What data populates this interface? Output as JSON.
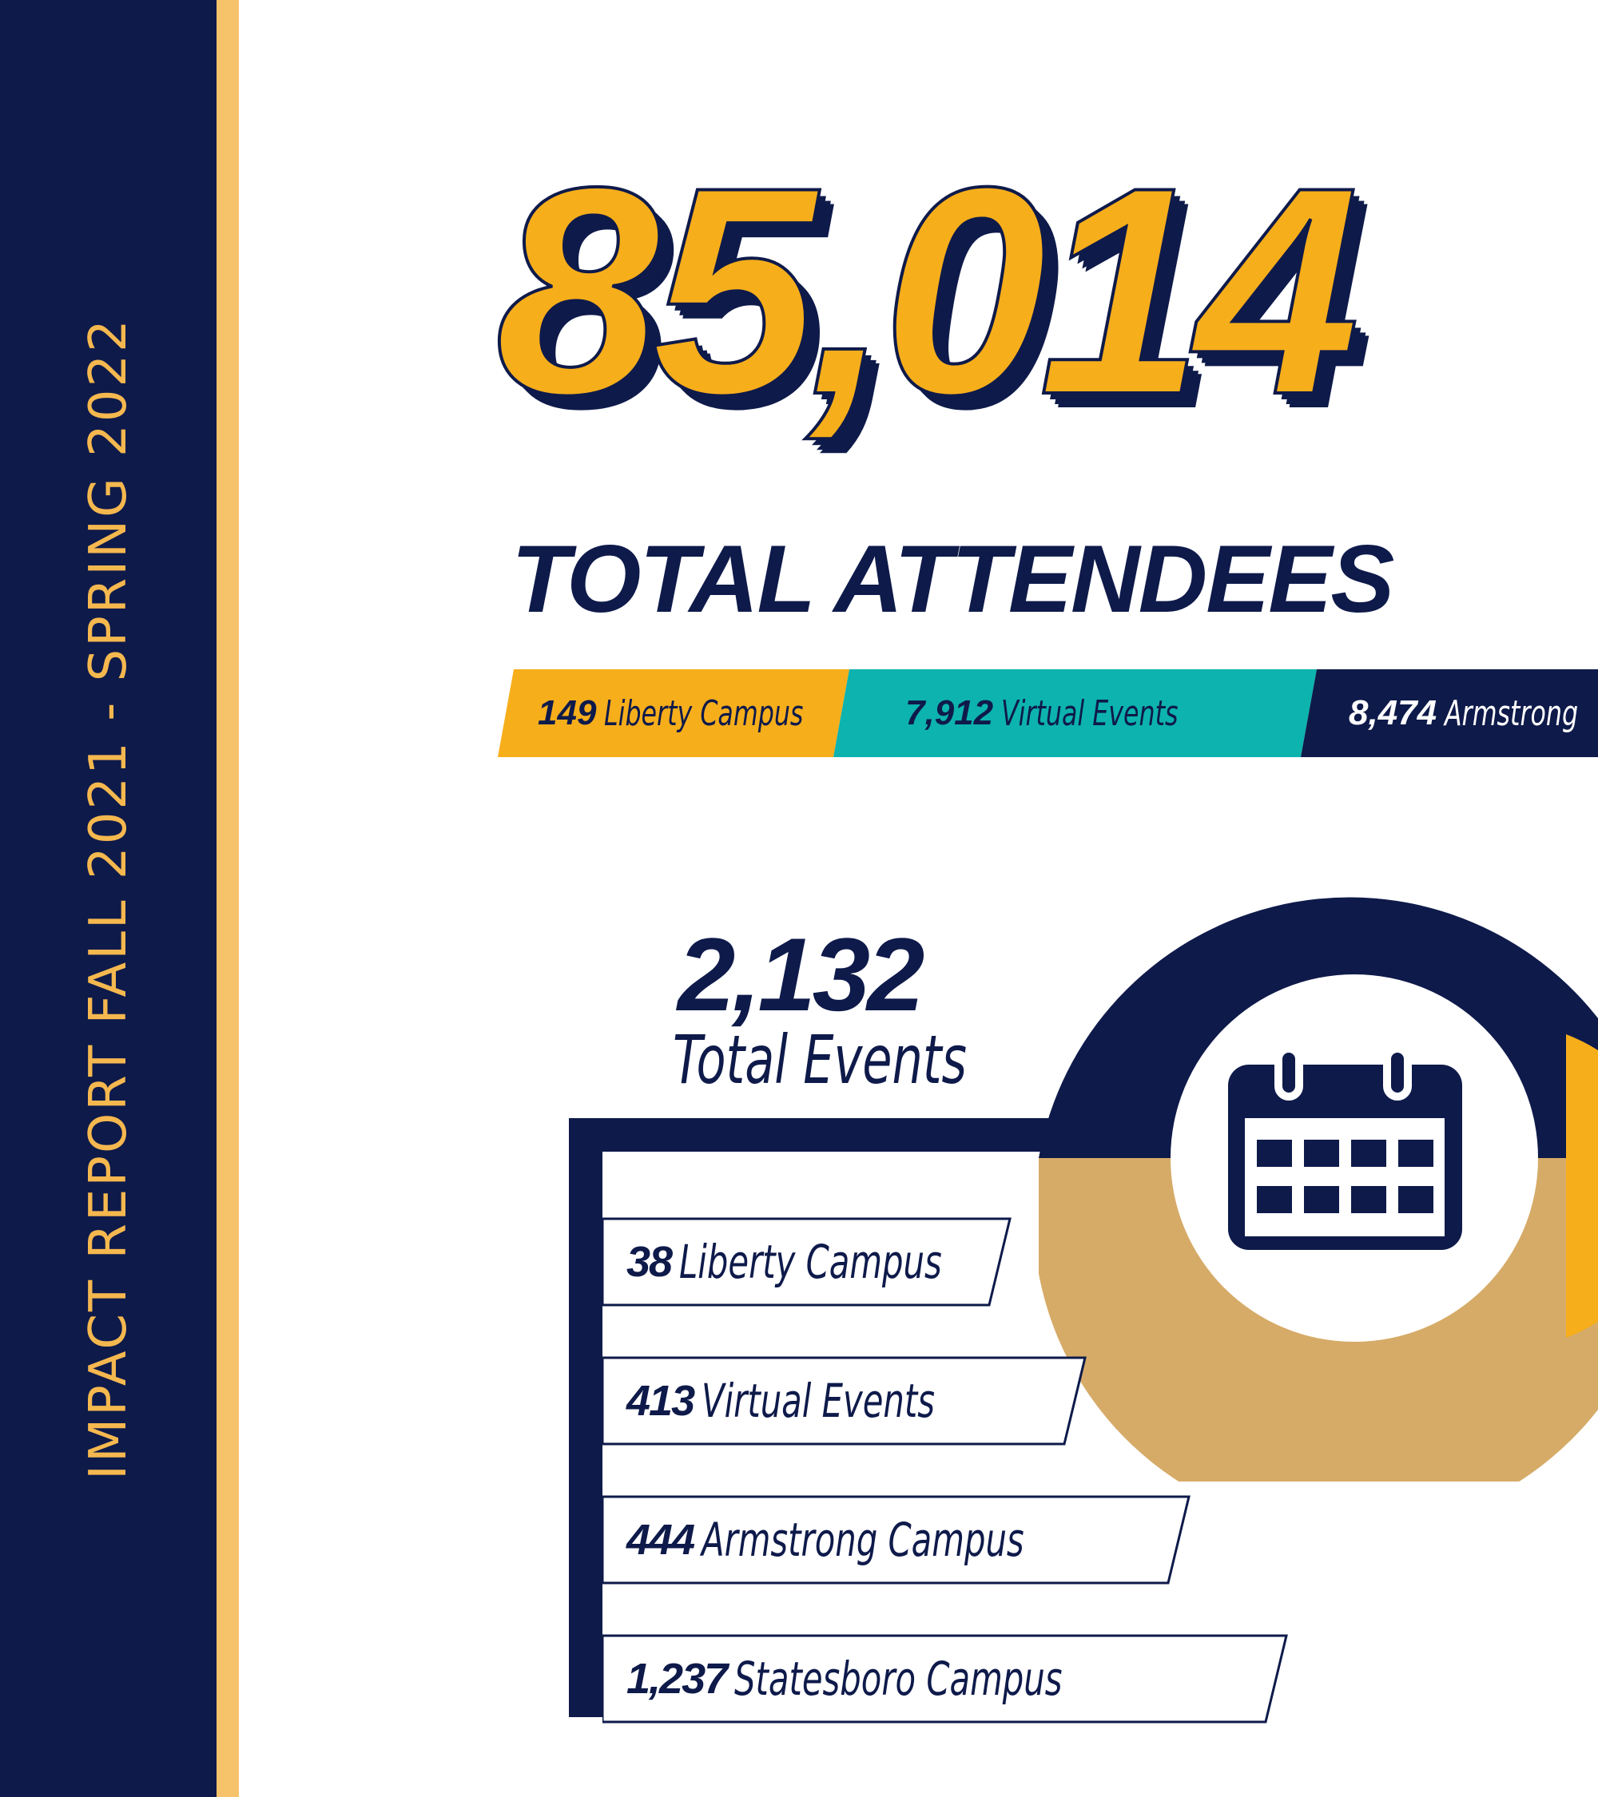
{
  "sidebar": {
    "title": "IMPACT REPORT FALL 2021 - SPRING 2022"
  },
  "attendees": {
    "total": "85,014",
    "label": "TOTAL ATTENDEES",
    "breakdown": [
      {
        "value": "149",
        "label": "Liberty Campus"
      },
      {
        "value": "7,912",
        "label": "Virtual Events"
      },
      {
        "value": "8,474",
        "label": "Armstrong"
      }
    ]
  },
  "events": {
    "total": "2,132",
    "label": "Total Events",
    "icon": "calendar-icon",
    "breakdown": [
      {
        "value": "38",
        "label": "Liberty Campus"
      },
      {
        "value": "413",
        "label": "Virtual Events"
      },
      {
        "value": "444",
        "label": "Armstrong Campus"
      },
      {
        "value": "1,237",
        "label": "Statesboro Campus"
      }
    ]
  },
  "colors": {
    "navy": "#0e1a4a",
    "gold": "#f7ae1b",
    "teal": "#0db3ae",
    "tan": "#d6ab68",
    "stripe": "#f6c36a"
  }
}
